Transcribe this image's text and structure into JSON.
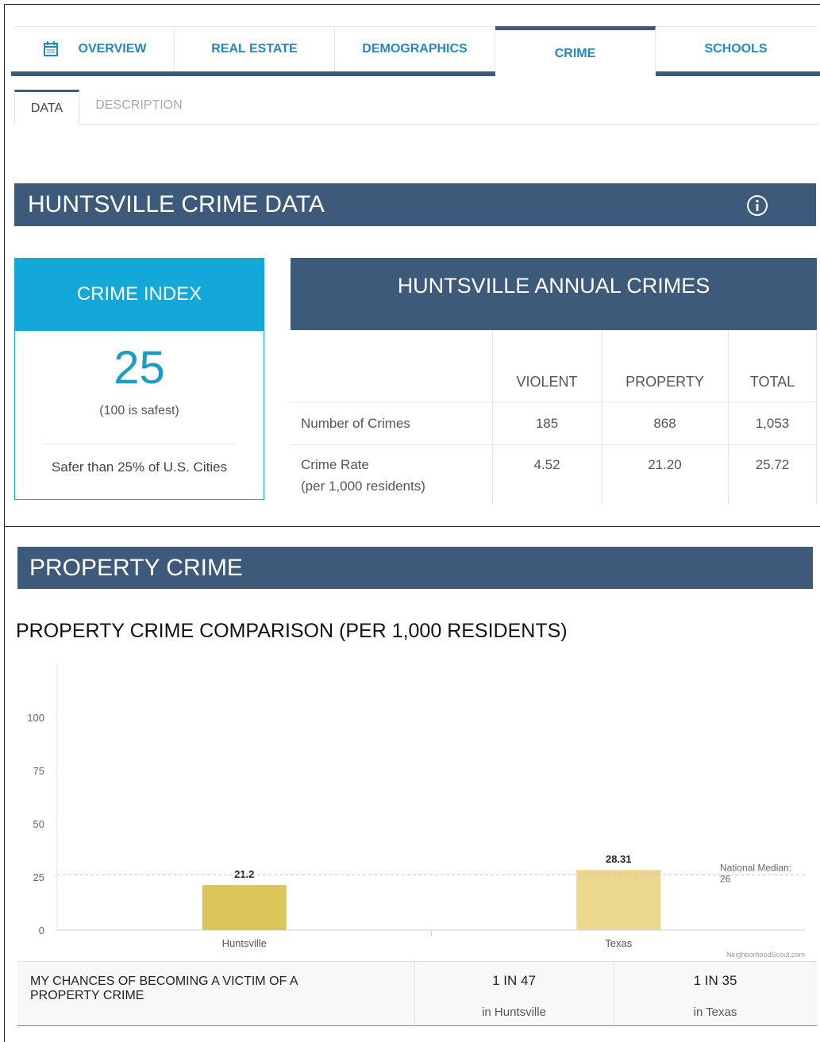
{
  "tabs": [
    "OVERVIEW",
    "REAL ESTATE",
    "DEMOGRAPHICS",
    "CRIME",
    "SCHOOLS"
  ],
  "subtabs": [
    "DATA",
    "DESCRIPTION"
  ],
  "crime_data": {
    "title": "HUNTSVILLE CRIME DATA"
  },
  "crime_index": {
    "title": "CRIME INDEX",
    "value": 25,
    "note": "(100 is safest)",
    "comparison": "Safer than 25% of U.S. Cities"
  },
  "annual": {
    "title": "HUNTSVILLE ANNUAL CRIMES",
    "columns": [
      "VIOLENT",
      "PROPERTY",
      "TOTAL"
    ],
    "rows": [
      {
        "label": "Number of Crimes",
        "values": [
          "185",
          "868",
          "1,053"
        ]
      },
      {
        "label": "Crime Rate",
        "sublabel": "(per 1,000 residents)",
        "values": [
          "4.52",
          "21.20",
          "25.72"
        ]
      }
    ]
  },
  "property_section": {
    "title": "PROPERTY CRIME"
  },
  "chart_data": {
    "type": "bar",
    "title": "PROPERTY CRIME COMPARISON (PER 1,000 RESIDENTS)",
    "categories": [
      "Huntsville",
      "Texas"
    ],
    "values": [
      21.2,
      28.31
    ],
    "colors": [
      "#dcc55b",
      "#ebd78e"
    ],
    "ylim": [
      0,
      125
    ],
    "yticks": [
      0,
      25,
      50,
      75,
      100
    ],
    "reference": {
      "label": "National Median:",
      "value": 26
    },
    "source": "NeighborhoodScout.com"
  },
  "chances": {
    "title": "MY CHANCES OF BECOMING A VICTIM OF A PROPERTY CRIME",
    "items": [
      {
        "odds": "1 IN 47",
        "place": "in Huntsville"
      },
      {
        "odds": "1 IN 35",
        "place": "in Texas"
      }
    ]
  }
}
